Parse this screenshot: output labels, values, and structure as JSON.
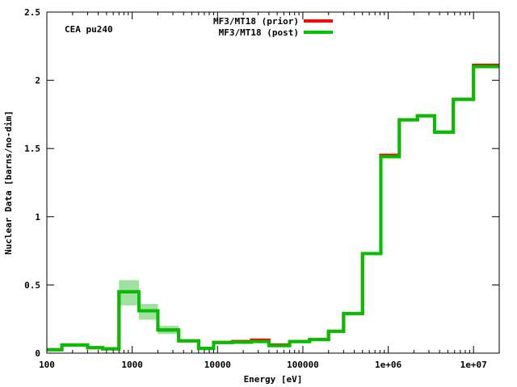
{
  "chart_data": {
    "type": "line",
    "subtype": "step",
    "annotation": "CEA pu240",
    "xlabel": "Energy [eV]",
    "ylabel": "Nuclear Data [barns/no-dim]",
    "xscale": "log",
    "xlim": [
      100,
      20000000
    ],
    "ylim": [
      0,
      2.5
    ],
    "x_tick_labels": [
      "100",
      "1000",
      "10000",
      "100000",
      "1e+06",
      "1e+07"
    ],
    "x_tick_values": [
      100,
      1000,
      10000,
      100000,
      1000000,
      10000000
    ],
    "y_tick_labels": [
      "0",
      "0.5",
      "1",
      "1.5",
      "2",
      "2.5"
    ],
    "y_tick_values": [
      0,
      0.5,
      1,
      1.5,
      2,
      2.5
    ],
    "legend_position": "top-center",
    "bin_edges": [
      100,
      150,
      300,
      450,
      700,
      1200,
      2000,
      3500,
      6000,
      9000,
      15000,
      25000,
      40000,
      70000,
      120000,
      200000,
      300000,
      500000,
      820000,
      1350000,
      2200000,
      3500000,
      5800000,
      10000000,
      20000000
    ],
    "series": [
      {
        "name": "MF3/MT18 (prior)",
        "color": "#ff0000",
        "values": [
          0.025,
          0.06,
          0.04,
          0.032,
          0.45,
          0.31,
          0.17,
          0.09,
          0.035,
          0.078,
          0.085,
          0.095,
          0.06,
          0.085,
          0.1,
          0.16,
          0.29,
          0.73,
          1.45,
          1.71,
          1.74,
          1.62,
          1.86,
          2.11
        ]
      },
      {
        "name": "MF3/MT18 (post)",
        "color": "#00c000",
        "values": [
          0.025,
          0.06,
          0.04,
          0.032,
          0.45,
          0.31,
          0.17,
          0.09,
          0.035,
          0.078,
          0.08,
          0.085,
          0.055,
          0.085,
          0.1,
          0.16,
          0.29,
          0.73,
          1.44,
          1.71,
          1.74,
          1.62,
          1.86,
          2.1
        ]
      }
    ],
    "uncertainty_band": {
      "color": "#a0e0a0",
      "lower": [
        0.025,
        0.06,
        0.04,
        0.032,
        0.35,
        0.245,
        0.14,
        0.09,
        0.035,
        0.078,
        0.08,
        0.085,
        0.055,
        0.085,
        0.1,
        0.16,
        0.29,
        0.73,
        1.44,
        1.71,
        1.74,
        1.62,
        1.86,
        2.1
      ],
      "upper": [
        0.025,
        0.06,
        0.04,
        0.032,
        0.535,
        0.36,
        0.2,
        0.09,
        0.035,
        0.078,
        0.08,
        0.085,
        0.055,
        0.085,
        0.1,
        0.16,
        0.29,
        0.73,
        1.44,
        1.71,
        1.74,
        1.62,
        1.86,
        2.1
      ]
    }
  }
}
